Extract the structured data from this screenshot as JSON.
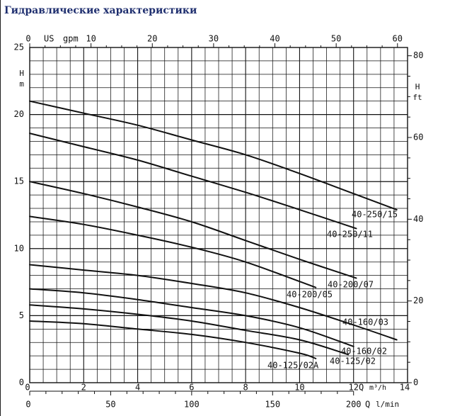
{
  "page": {
    "title": "Гидравлические характеристики"
  },
  "colors": {
    "ink": "#111111",
    "title": "#1f2f6f",
    "background": "#ffffff"
  },
  "chart_data": {
    "type": "line",
    "grid": true,
    "legend": "inline-labels",
    "x_axis": {
      "label": "Q m³/h",
      "range": [
        0,
        14
      ],
      "ticks": [
        0,
        2,
        4,
        6,
        8,
        10,
        12,
        14
      ],
      "tick_labels": [
        "0",
        "2",
        "4",
        "6",
        "8",
        "10",
        "12",
        "14"
      ]
    },
    "x_axis_top": {
      "label": "US gpm",
      "range": [
        0,
        60
      ],
      "ticks": [
        0,
        10,
        20,
        30,
        40,
        50,
        60
      ],
      "tick_labels": [
        "0",
        "10",
        "20",
        "30",
        "40",
        "50",
        "60"
      ]
    },
    "x_axis_bottom": {
      "label": "Q l/min",
      "range": [
        0,
        200
      ],
      "ticks": [
        0,
        50,
        100,
        150,
        200
      ],
      "tick_labels": [
        "0",
        "50",
        "100",
        "150",
        "200"
      ]
    },
    "y_axis_left": {
      "label_top": "H",
      "label_bottom": "m",
      "range": [
        0,
        25
      ],
      "ticks": [
        0,
        5,
        10,
        15,
        20,
        25
      ],
      "tick_labels": [
        "0",
        "5",
        "10",
        "15",
        "20",
        "25"
      ]
    },
    "y_axis_right": {
      "label_top": "H",
      "label_bottom": "ft",
      "range": [
        0,
        80
      ],
      "ticks": [
        0,
        20,
        40,
        60,
        80
      ],
      "tick_labels": [
        "0",
        "20",
        "40",
        "60",
        "80"
      ]
    },
    "series": [
      {
        "name": "40-250/15",
        "points": [
          [
            0,
            21.0
          ],
          [
            2,
            20.1
          ],
          [
            4,
            19.2
          ],
          [
            6,
            18.1
          ],
          [
            8,
            17.0
          ],
          [
            10,
            15.6
          ],
          [
            12,
            14.1
          ],
          [
            13.6,
            12.9
          ]
        ]
      },
      {
        "name": "40-250/11",
        "points": [
          [
            0,
            18.6
          ],
          [
            2,
            17.6
          ],
          [
            4,
            16.6
          ],
          [
            6,
            15.4
          ],
          [
            8,
            14.2
          ],
          [
            10,
            12.9
          ],
          [
            12.1,
            11.5
          ]
        ]
      },
      {
        "name": "40-200/07",
        "points": [
          [
            0,
            15.0
          ],
          [
            2,
            14.1
          ],
          [
            4,
            13.1
          ],
          [
            6,
            12.0
          ],
          [
            8,
            10.6
          ],
          [
            10,
            9.2
          ],
          [
            12.1,
            7.8
          ]
        ]
      },
      {
        "name": "40-200/05",
        "points": [
          [
            0,
            12.4
          ],
          [
            2,
            11.8
          ],
          [
            4,
            11.0
          ],
          [
            6,
            10.1
          ],
          [
            8,
            9.0
          ],
          [
            10.6,
            7.1
          ]
        ]
      },
      {
        "name": "40-160/03",
        "points": [
          [
            0,
            8.8
          ],
          [
            2,
            8.4
          ],
          [
            4,
            8.0
          ],
          [
            6,
            7.4
          ],
          [
            8,
            6.7
          ],
          [
            10,
            5.6
          ],
          [
            12,
            4.3
          ],
          [
            13.6,
            3.2
          ]
        ]
      },
      {
        "name": "40-160/02",
        "points": [
          [
            0,
            7.0
          ],
          [
            2,
            6.7
          ],
          [
            4,
            6.2
          ],
          [
            6,
            5.6
          ],
          [
            8,
            5.0
          ],
          [
            10,
            4.1
          ],
          [
            12.0,
            2.7
          ]
        ]
      },
      {
        "name": "40-125/02",
        "points": [
          [
            0,
            5.8
          ],
          [
            2,
            5.5
          ],
          [
            4,
            5.1
          ],
          [
            6,
            4.6
          ],
          [
            8,
            3.9
          ],
          [
            10,
            3.2
          ],
          [
            11.8,
            2.1
          ]
        ]
      },
      {
        "name": "40-125/02A",
        "points": [
          [
            0,
            4.6
          ],
          [
            2,
            4.4
          ],
          [
            4,
            4.0
          ],
          [
            6,
            3.6
          ],
          [
            8,
            3.0
          ],
          [
            10,
            2.2
          ],
          [
            10.6,
            1.8
          ]
        ]
      }
    ],
    "curve_labels": [
      "40-250/15",
      "40-250/11",
      "40-200/07",
      "40-200/05",
      "40-160/03",
      "40-160/02",
      "40-125/02",
      "40-125/02A"
    ]
  }
}
